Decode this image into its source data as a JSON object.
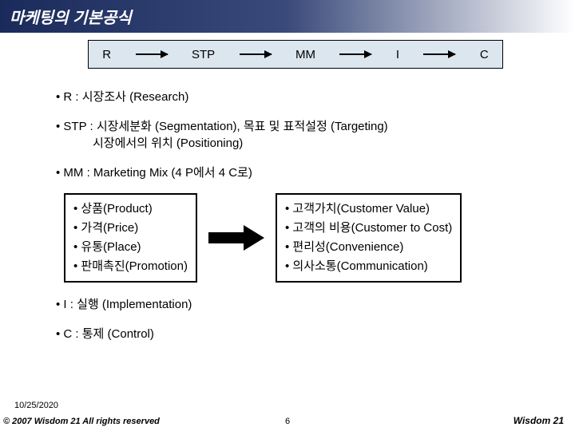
{
  "title": "마케팅의 기본공식",
  "flow": {
    "nodes": [
      "R",
      "STP",
      "MM",
      "I",
      "C"
    ]
  },
  "bullets": {
    "r": "• R : 시장조사 (Research)",
    "stp_l1": "• STP : 시장세분화 (Segmentation), 목표 및 표적설정 (Targeting)",
    "stp_l2": "시장에서의 위치 (Positioning)",
    "mm": "• MM : Marketing Mix (4 P에서 4 C로)",
    "i": "• I : 실행 (Implementation)",
    "c": "• C : 통제 (Control)"
  },
  "box4p": {
    "items": [
      "• 상품(Product)",
      "• 가격(Price)",
      "• 유통(Place)",
      "• 판매촉진(Promotion)"
    ]
  },
  "box4c": {
    "items": [
      "• 고객가치(Customer Value)",
      "• 고객의 비용(Customer to Cost)",
      "• 편리성(Convenience)",
      "• 의사소통(Communication)"
    ]
  },
  "date": "10/25/2020",
  "footer_left": "© 2007  Wisdom 21  All rights reserved",
  "page_number": "6",
  "footer_right": "Wisdom 21",
  "colors": {
    "title_gradient_start": "#1a2a5a",
    "title_gradient_end": "#ffffff",
    "flow_bg": "#dce6ef",
    "border": "#000000",
    "text": "#000000"
  }
}
